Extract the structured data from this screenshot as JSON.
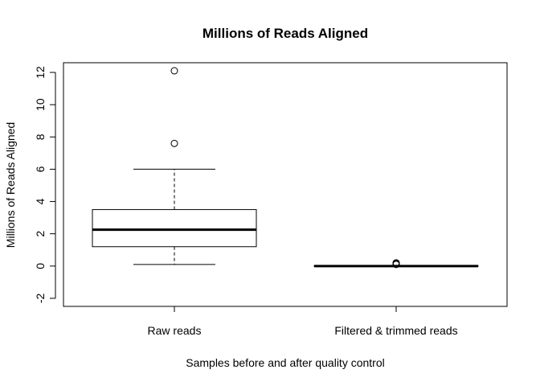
{
  "chart_data": {
    "type": "boxplot",
    "title": "Millions of Reads Aligned",
    "xlabel": "Samples before and after quality control",
    "ylabel": "Millions of Reads Aligned",
    "ylim": [
      -2.5,
      12.6
    ],
    "yticks": [
      -2,
      0,
      2,
      4,
      6,
      8,
      10,
      12
    ],
    "categories": [
      "Raw reads",
      "Filtered & trimmed reads"
    ],
    "boxes": [
      {
        "name": "Raw reads",
        "whisker_low": 0.1,
        "q1": 1.2,
        "median": 2.25,
        "q3": 3.5,
        "whisker_high": 6.0,
        "outliers": [
          7.6,
          12.1
        ]
      },
      {
        "name": "Filtered & trimmed reads",
        "whisker_low": 0.0,
        "q1": 0.0,
        "median": 0.0,
        "q3": 0.02,
        "whisker_high": 0.03,
        "outliers": [
          0.1,
          0.15,
          0.2
        ]
      }
    ],
    "grid": false,
    "legend": "none"
  }
}
